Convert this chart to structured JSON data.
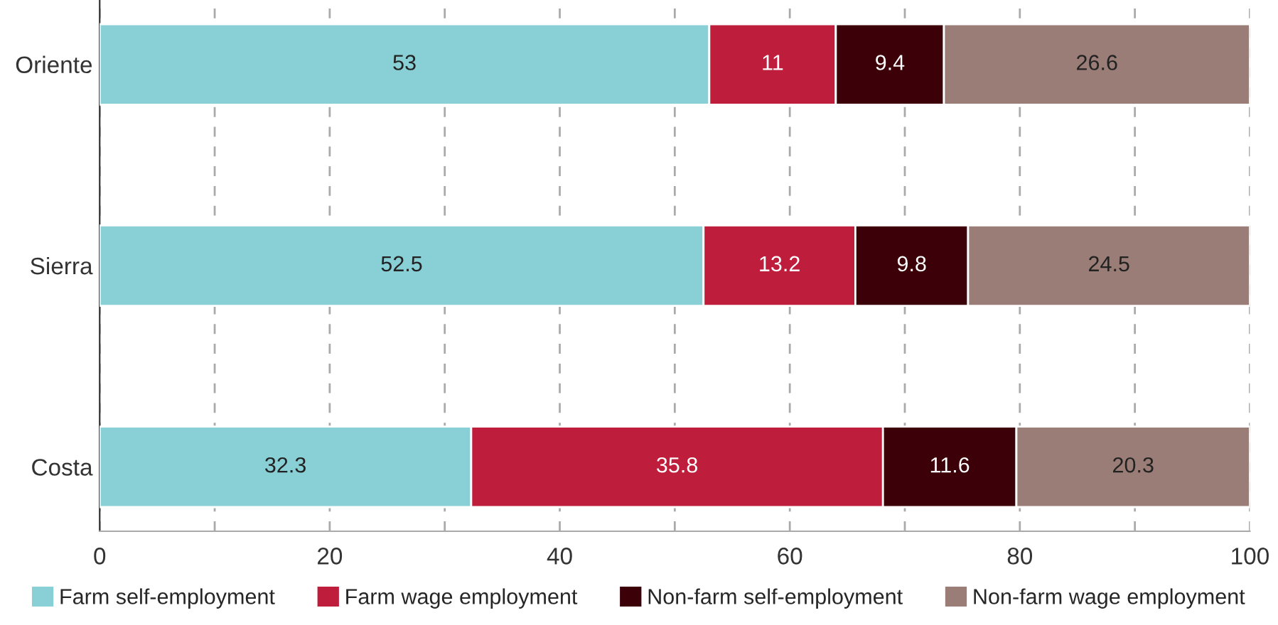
{
  "chart_data": {
    "type": "bar",
    "orientation": "horizontal",
    "stacked": true,
    "categories": [
      "Oriente",
      "Sierra",
      "Costa"
    ],
    "series": [
      {
        "name": "Farm self-employment",
        "color": "#88cfd6",
        "values": [
          53,
          52.5,
          32.3
        ]
      },
      {
        "name": "Farm wage employment",
        "color": "#be1e3c",
        "values": [
          11,
          13.2,
          35.8
        ]
      },
      {
        "name": "Non-farm self-employment",
        "color": "#3c0008",
        "values": [
          9.4,
          9.8,
          11.6
        ]
      },
      {
        "name": "Non-farm wage employment",
        "color": "#9a7d76",
        "values": [
          26.6,
          24.5,
          20.3
        ]
      }
    ],
    "xlim": [
      0,
      100
    ],
    "xticks": [
      0,
      {
        "value": 10,
        "label": null
      },
      20,
      {
        "value": 30,
        "label": null
      },
      40,
      {
        "value": 50,
        "label": null
      },
      60,
      {
        "value": 70,
        "label": null
      },
      80,
      {
        "value": 90,
        "label": null
      },
      100
    ],
    "grid": "x",
    "legend": "bottom",
    "data_labels": true
  }
}
